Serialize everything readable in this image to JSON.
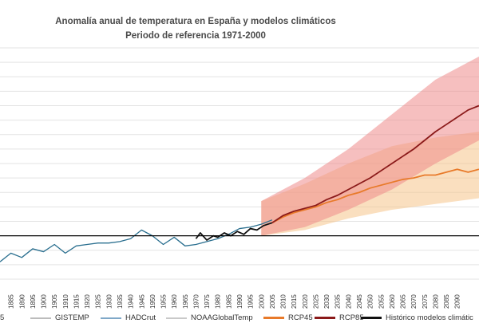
{
  "chart_data": {
    "type": "line",
    "title": "Anomalía anual de temperatura en España y modelos climáticos",
    "subtitle": "Periodo de referencia 1971-2000",
    "xlabel": "",
    "ylabel": "",
    "xlim": [
      1880,
      2100
    ],
    "ylim": [
      -1.5,
      6.5
    ],
    "grid": true,
    "reference_line_y": 0,
    "x_ticks": [
      "1885",
      "1890",
      "1895",
      "1900",
      "1905",
      "1910",
      "1915",
      "1920",
      "1925",
      "1930",
      "1935",
      "1940",
      "1945",
      "1950",
      "1955",
      "1960",
      "1965",
      "1970",
      "1975",
      "1980",
      "1985",
      "1990",
      "1995",
      "2000",
      "2005",
      "2010",
      "2015",
      "2020",
      "2025",
      "2030",
      "2035",
      "2040",
      "2045",
      "2050",
      "2055",
      "2060",
      "2065",
      "2070",
      "2075",
      "2080",
      "2085",
      "2090"
    ],
    "first_legend_fragment": "5",
    "legend": [
      "GISTEMP",
      "HADCrut",
      "NOAAGlobalTemp",
      "RCP45",
      "RCP85",
      "Histórico modelos climátic"
    ],
    "series": [
      {
        "name": "HADCrut",
        "color": "#2a6f8f",
        "points": [
          [
            1880,
            -0.9
          ],
          [
            1885,
            -0.6
          ],
          [
            1890,
            -0.75
          ],
          [
            1895,
            -0.45
          ],
          [
            1900,
            -0.55
          ],
          [
            1905,
            -0.3
          ],
          [
            1910,
            -0.6
          ],
          [
            1915,
            -0.35
          ],
          [
            1920,
            -0.3
          ],
          [
            1925,
            -0.25
          ],
          [
            1930,
            -0.25
          ],
          [
            1935,
            -0.2
          ],
          [
            1940,
            -0.1
          ],
          [
            1945,
            0.2
          ],
          [
            1950,
            0.0
          ],
          [
            1955,
            -0.3
          ],
          [
            1960,
            -0.05
          ],
          [
            1965,
            -0.35
          ],
          [
            1970,
            -0.3
          ],
          [
            1975,
            -0.2
          ],
          [
            1980,
            -0.1
          ],
          [
            1985,
            0.05
          ],
          [
            1990,
            0.25
          ],
          [
            1995,
            0.3
          ],
          [
            2000,
            0.4
          ],
          [
            2005,
            0.55
          ]
        ]
      },
      {
        "name": "Histórico modelos climátic",
        "color": "#111111",
        "points": [
          [
            1970,
            -0.1
          ],
          [
            1972,
            0.1
          ],
          [
            1975,
            -0.15
          ],
          [
            1978,
            0.0
          ],
          [
            1980,
            -0.05
          ],
          [
            1983,
            0.1
          ],
          [
            1986,
            0.0
          ],
          [
            1989,
            0.15
          ],
          [
            1992,
            0.05
          ],
          [
            1995,
            0.25
          ],
          [
            1998,
            0.2
          ],
          [
            2001,
            0.35
          ],
          [
            2005,
            0.45
          ]
        ]
      },
      {
        "name": "RCP45",
        "color": "#e87a2a",
        "points": [
          [
            2005,
            0.45
          ],
          [
            2010,
            0.65
          ],
          [
            2015,
            0.8
          ],
          [
            2020,
            0.9
          ],
          [
            2025,
            1.0
          ],
          [
            2030,
            1.15
          ],
          [
            2035,
            1.25
          ],
          [
            2040,
            1.4
          ],
          [
            2045,
            1.5
          ],
          [
            2050,
            1.65
          ],
          [
            2055,
            1.75
          ],
          [
            2060,
            1.85
          ],
          [
            2065,
            1.95
          ],
          [
            2070,
            2.0
          ],
          [
            2075,
            2.1
          ],
          [
            2080,
            2.1
          ],
          [
            2085,
            2.2
          ],
          [
            2090,
            2.3
          ],
          [
            2095,
            2.2
          ],
          [
            2100,
            2.3
          ]
        ]
      },
      {
        "name": "RCP85",
        "color": "#8b1a1a",
        "points": [
          [
            2005,
            0.45
          ],
          [
            2010,
            0.7
          ],
          [
            2015,
            0.85
          ],
          [
            2020,
            0.95
          ],
          [
            2025,
            1.05
          ],
          [
            2030,
            1.25
          ],
          [
            2035,
            1.4
          ],
          [
            2040,
            1.6
          ],
          [
            2045,
            1.8
          ],
          [
            2050,
            2.0
          ],
          [
            2055,
            2.25
          ],
          [
            2060,
            2.5
          ],
          [
            2065,
            2.75
          ],
          [
            2070,
            3.0
          ],
          [
            2075,
            3.3
          ],
          [
            2080,
            3.6
          ],
          [
            2085,
            3.85
          ],
          [
            2090,
            4.1
          ],
          [
            2095,
            4.35
          ],
          [
            2100,
            4.5
          ]
        ]
      }
    ],
    "bands": [
      {
        "name": "RCP45",
        "color": "#f6c48a",
        "points": [
          [
            2000,
            0.0,
            1.2
          ],
          [
            2020,
            0.2,
            1.8
          ],
          [
            2040,
            0.6,
            2.5
          ],
          [
            2060,
            0.9,
            3.1
          ],
          [
            2080,
            1.1,
            3.4
          ],
          [
            2100,
            1.3,
            3.6
          ]
        ]
      },
      {
        "name": "RCP85",
        "color": "#ef8a8a",
        "points": [
          [
            2000,
            0.0,
            1.2
          ],
          [
            2020,
            0.3,
            2.0
          ],
          [
            2040,
            0.9,
            3.0
          ],
          [
            2060,
            1.6,
            4.2
          ],
          [
            2080,
            2.5,
            5.4
          ],
          [
            2100,
            3.3,
            6.2
          ]
        ]
      }
    ]
  }
}
